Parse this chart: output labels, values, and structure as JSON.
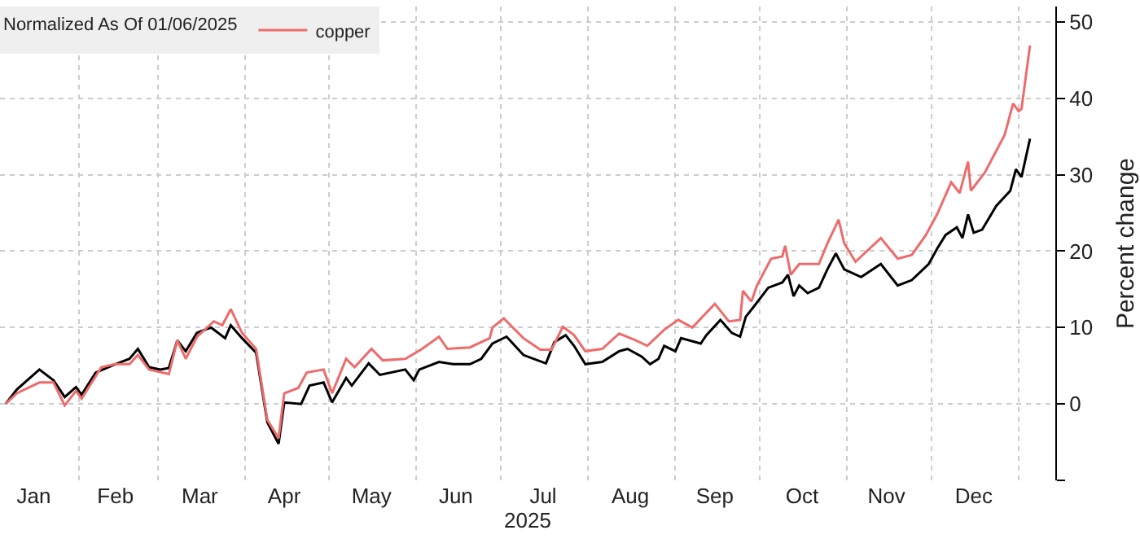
{
  "chart_data": {
    "type": "line",
    "legend_title": "Normalized As Of 01/06/2025",
    "xlabel": "2025",
    "ylabel": "Percent change",
    "xlim": [
      "2025-01-04",
      "2026-01-14"
    ],
    "ylim": [
      -10,
      52
    ],
    "xticks": [
      {
        "value": "2025-01-16",
        "label": "Jan"
      },
      {
        "value": "2025-02-14",
        "label": "Feb"
      },
      {
        "value": "2025-03-16",
        "label": "Mar"
      },
      {
        "value": "2025-04-15",
        "label": "Apr"
      },
      {
        "value": "2025-05-16",
        "label": "May"
      },
      {
        "value": "2025-06-15",
        "label": "Jun"
      },
      {
        "value": "2025-07-16",
        "label": "Jul"
      },
      {
        "value": "2025-08-16",
        "label": "Aug"
      },
      {
        "value": "2025-09-15",
        "label": "Sep"
      },
      {
        "value": "2025-10-16",
        "label": "Oct"
      },
      {
        "value": "2025-11-15",
        "label": "Nov"
      },
      {
        "value": "2025-12-16",
        "label": "Dec"
      },
      {
        "value": "2025-02-01",
        "label": null
      },
      {
        "value": "2025-03-01",
        "label": null
      },
      {
        "value": "2025-04-01",
        "label": null
      },
      {
        "value": "2025-05-01",
        "label": null
      },
      {
        "value": "2025-06-01",
        "label": null
      },
      {
        "value": "2025-07-01",
        "label": null
      },
      {
        "value": "2025-08-01",
        "label": null
      },
      {
        "value": "2025-09-01",
        "label": null
      },
      {
        "value": "2025-10-01",
        "label": null
      },
      {
        "value": "2025-11-01",
        "label": null
      },
      {
        "value": "2025-12-01",
        "label": null
      },
      {
        "value": "2026-01-01",
        "label": null
      }
    ],
    "yticks": [
      {
        "value": -10,
        "label": null
      },
      0,
      10,
      20,
      30,
      40,
      50
    ],
    "grid": true,
    "legend": "top left",
    "line_style": "solid",
    "marker": "none",
    "series": [
      {
        "color": "#000000",
        "x": [
          "2025-01-06",
          "2025-01-10",
          "2025-01-18",
          "2025-01-23",
          "2025-01-27",
          "2025-01-31",
          "2025-02-02",
          "2025-02-07",
          "2025-02-14",
          "2025-02-19",
          "2025-02-22",
          "2025-02-26",
          "2025-03-02",
          "2025-03-05",
          "2025-03-08",
          "2025-03-11",
          "2025-03-15",
          "2025-03-20",
          "2025-03-25",
          "2025-03-27",
          "2025-03-31",
          "2025-04-05",
          "2025-04-09",
          "2025-04-13",
          "2025-04-15",
          "2025-04-21",
          "2025-04-24",
          "2025-04-29",
          "2025-05-02",
          "2025-05-07",
          "2025-05-09",
          "2025-05-15",
          "2025-05-19",
          "2025-05-28",
          "2025-05-31",
          "2025-06-02",
          "2025-06-09",
          "2025-06-14",
          "2025-06-20",
          "2025-06-24",
          "2025-06-28",
          "2025-07-03",
          "2025-07-09",
          "2025-07-17",
          "2025-07-20",
          "2025-07-24",
          "2025-07-27",
          "2025-07-31",
          "2025-08-06",
          "2025-08-12",
          "2025-08-15",
          "2025-08-20",
          "2025-08-23",
          "2025-08-26",
          "2025-08-28",
          "2025-09-01",
          "2025-09-03",
          "2025-09-10",
          "2025-09-12",
          "2025-09-17",
          "2025-09-21",
          "2025-09-24",
          "2025-09-26",
          "2025-09-29",
          "2025-10-04",
          "2025-10-09",
          "2025-10-11",
          "2025-10-13",
          "2025-10-15",
          "2025-10-18",
          "2025-10-22",
          "2025-10-25",
          "2025-10-28",
          "2025-10-31",
          "2025-11-06",
          "2025-11-13",
          "2025-11-19",
          "2025-11-24",
          "2025-11-30",
          "2025-12-03",
          "2025-12-06",
          "2025-12-10",
          "2025-12-12",
          "2025-12-14",
          "2025-12-16",
          "2025-12-19",
          "2025-12-24",
          "2025-12-29",
          "2025-12-31",
          "2026-01-02",
          "2026-01-05"
        ],
        "values": [
          0,
          1.9,
          4.5,
          3.1,
          0.9,
          2.2,
          1.2,
          4.1,
          5.2,
          5.9,
          7.2,
          4.8,
          4.5,
          4.7,
          8.3,
          6.9,
          9.3,
          10.0,
          8.6,
          10.3,
          8.6,
          6.7,
          -2.4,
          -5.2,
          0.2,
          0,
          2.4,
          2.8,
          0.2,
          3.4,
          2.4,
          5.3,
          3.8,
          4.5,
          3.1,
          4.5,
          5.5,
          5.2,
          5.2,
          5.9,
          7.9,
          8.8,
          6.4,
          5.3,
          8.1,
          9.0,
          7.6,
          5.2,
          5.5,
          6.9,
          7.2,
          6.2,
          5.2,
          5.9,
          7.6,
          6.9,
          8.6,
          7.9,
          9.0,
          11.0,
          9.3,
          8.8,
          11.4,
          12.8,
          15.2,
          15.9,
          16.9,
          14.1,
          15.5,
          14.5,
          15.2,
          17.6,
          19.7,
          17.6,
          16.6,
          18.3,
          15.5,
          16.2,
          18.3,
          20.3,
          22.1,
          23.1,
          21.7,
          24.8,
          22.4,
          22.8,
          25.9,
          27.9,
          30.7,
          29.7,
          34.7
        ]
      },
      {
        "name": "copper",
        "color": "#ee6b6b",
        "x": [
          "2025-01-06",
          "2025-01-10",
          "2025-01-18",
          "2025-01-23",
          "2025-01-27",
          "2025-01-31",
          "2025-02-02",
          "2025-02-09",
          "2025-02-14",
          "2025-02-19",
          "2025-02-22",
          "2025-02-26",
          "2025-03-05",
          "2025-03-08",
          "2025-03-11",
          "2025-03-15",
          "2025-03-21",
          "2025-03-24",
          "2025-03-27",
          "2025-03-31",
          "2025-04-05",
          "2025-04-09",
          "2025-04-13",
          "2025-04-15",
          "2025-04-20",
          "2025-04-23",
          "2025-04-29",
          "2025-05-02",
          "2025-05-07",
          "2025-05-10",
          "2025-05-16",
          "2025-05-20",
          "2025-05-28",
          "2025-06-03",
          "2025-06-09",
          "2025-06-12",
          "2025-06-20",
          "2025-06-27",
          "2025-06-28",
          "2025-07-02",
          "2025-07-09",
          "2025-07-15",
          "2025-07-19",
          "2025-07-23",
          "2025-07-27",
          "2025-07-31",
          "2025-08-06",
          "2025-08-12",
          "2025-08-18",
          "2025-08-22",
          "2025-08-28",
          "2025-09-02",
          "2025-09-07",
          "2025-09-15",
          "2025-09-20",
          "2025-09-24",
          "2025-09-25",
          "2025-09-28",
          "2025-09-30",
          "2025-10-05",
          "2025-10-09",
          "2025-10-10",
          "2025-10-12",
          "2025-10-15",
          "2025-10-22",
          "2025-10-25",
          "2025-10-29",
          "2025-10-31",
          "2025-11-04",
          "2025-11-13",
          "2025-11-19",
          "2025-11-24",
          "2025-11-29",
          "2025-12-03",
          "2025-12-08",
          "2025-12-11",
          "2025-12-14",
          "2025-12-15",
          "2025-12-20",
          "2025-12-27",
          "2025-12-30",
          "2026-01-01",
          "2026-01-02",
          "2026-01-05"
        ],
        "values": [
          0,
          1.4,
          2.8,
          2.8,
          -0.2,
          1.7,
          0.7,
          4.8,
          5.2,
          5.2,
          6.4,
          4.5,
          3.9,
          8.3,
          5.9,
          8.8,
          10.8,
          10.3,
          12.4,
          9.3,
          7.2,
          -2.1,
          -4.5,
          1.4,
          2.1,
          4.1,
          4.5,
          1.4,
          5.9,
          4.8,
          7.2,
          5.7,
          5.9,
          7.2,
          8.8,
          7.2,
          7.4,
          8.6,
          10.0,
          11.2,
          8.6,
          7.1,
          7.1,
          10.1,
          9.0,
          6.9,
          7.2,
          9.2,
          8.3,
          7.6,
          9.7,
          11.0,
          10.0,
          13.1,
          10.8,
          11.0,
          14.8,
          13.4,
          15.5,
          19.0,
          19.3,
          20.7,
          16.9,
          18.3,
          18.3,
          21.0,
          24.1,
          21.0,
          18.6,
          21.7,
          19.0,
          19.5,
          22.1,
          24.8,
          29.0,
          27.6,
          31.7,
          27.9,
          30.3,
          35.2,
          39.3,
          38.3,
          38.6,
          46.9
        ]
      }
    ]
  }
}
